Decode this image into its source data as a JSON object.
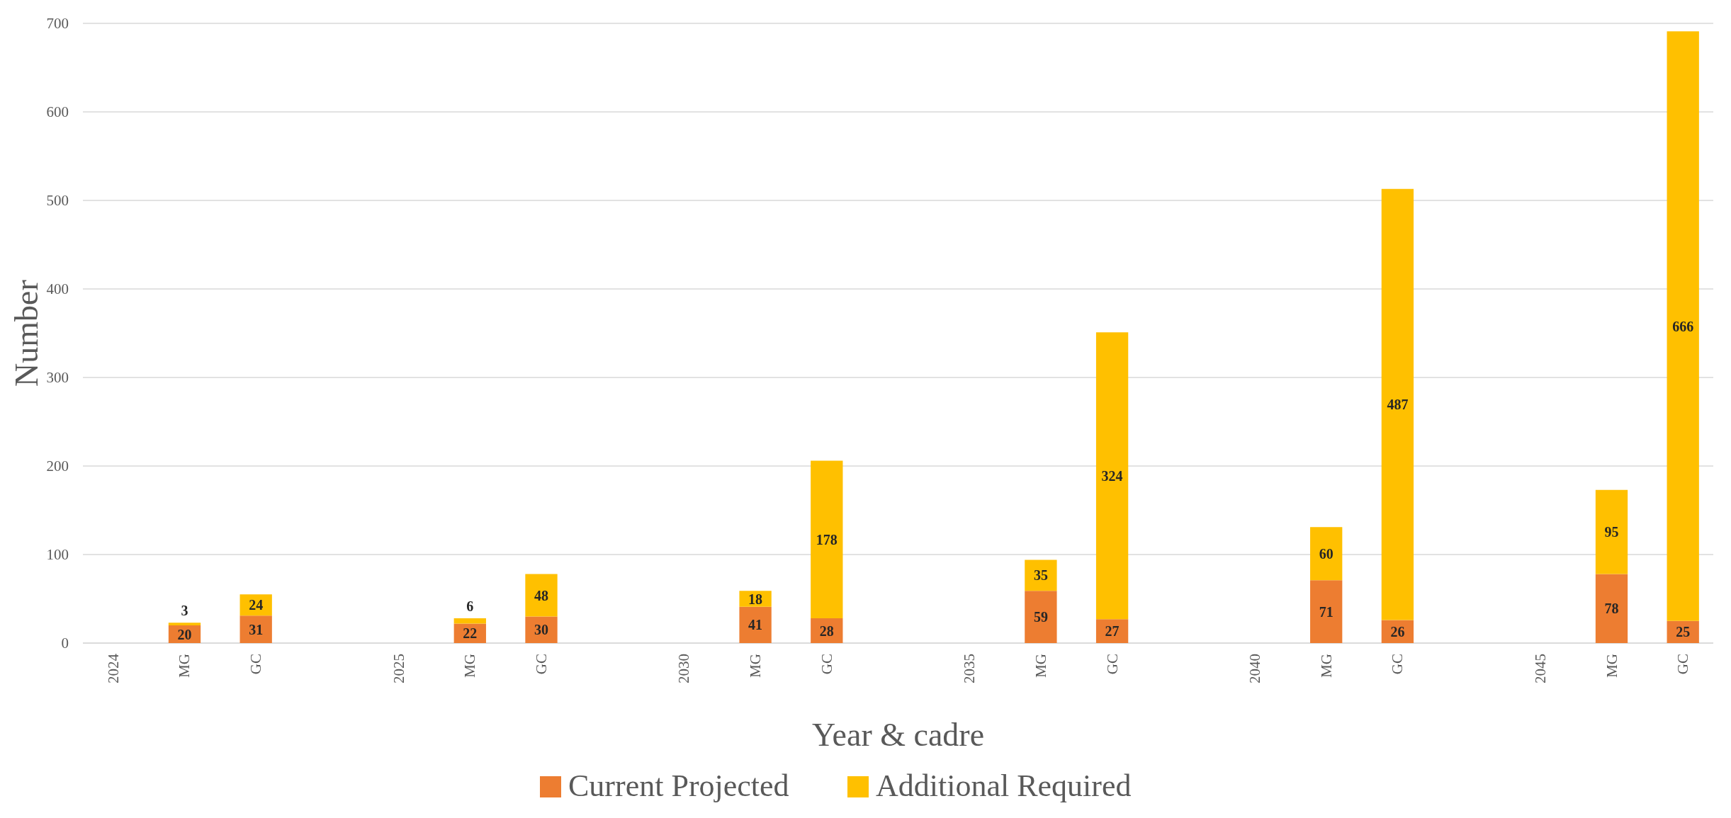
{
  "chart_data": {
    "type": "bar",
    "stacked": true,
    "xlabel": "Year & cadre",
    "ylabel": "Number",
    "categories": [
      "2024",
      "MG",
      "GC",
      null,
      "2025",
      "MG",
      "GC",
      null,
      "2030",
      "MG",
      "GC",
      null,
      "2035",
      "MG",
      "GC",
      null,
      "2040",
      "MG",
      "GC",
      null,
      "2045",
      "MG",
      "GC"
    ],
    "series": [
      {
        "name": "Current Projected",
        "color": "#ed7d31",
        "values": [
          null,
          20,
          31,
          null,
          null,
          22,
          30,
          null,
          null,
          41,
          28,
          null,
          null,
          59,
          27,
          null,
          null,
          71,
          26,
          null,
          null,
          78,
          25
        ]
      },
      {
        "name": "Additional Required",
        "color": "#ffc000",
        "values": [
          null,
          3,
          24,
          null,
          null,
          6,
          48,
          null,
          null,
          18,
          178,
          null,
          null,
          35,
          324,
          null,
          null,
          60,
          487,
          null,
          null,
          95,
          666
        ]
      }
    ],
    "ylim": [
      0,
      700
    ],
    "yticks": [
      0,
      100,
      200,
      300,
      400,
      500,
      600,
      700
    ],
    "grid": "y",
    "legend": "bottom",
    "data_labels": true
  }
}
